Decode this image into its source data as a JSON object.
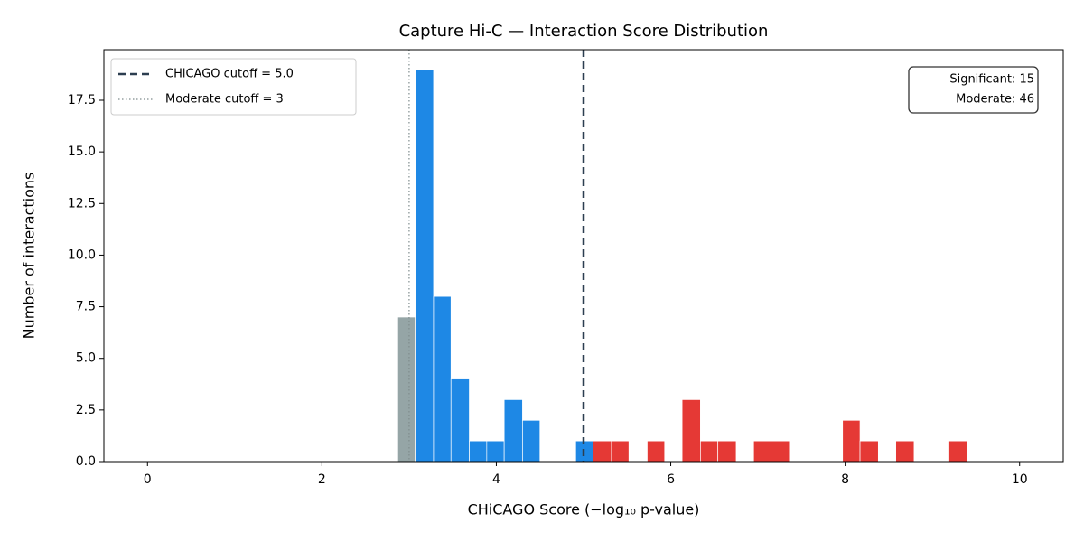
{
  "chart_data": {
    "type": "histogram",
    "title": "Capture Hi-C — Interaction Score Distribution",
    "x_label": "CHiCAGO Score (−log₁₀ p-value)",
    "y_label": "Number of interactions",
    "bins": [
      2.87,
      3.07,
      3.28,
      3.48,
      3.69,
      3.89,
      4.09,
      4.3,
      4.5,
      4.71,
      4.91,
      5.11,
      5.32,
      5.52,
      5.73,
      5.93,
      6.13,
      6.34,
      6.54,
      6.75,
      6.95,
      7.15,
      7.36,
      7.56,
      7.77,
      7.97,
      8.17,
      8.38,
      8.58,
      8.79,
      8.99,
      9.19,
      9.4
    ],
    "counts": [
      7,
      19,
      8,
      4,
      1,
      1,
      3,
      2,
      0,
      0,
      1,
      1,
      1,
      0,
      1,
      0,
      3,
      1,
      1,
      0,
      1,
      1,
      0,
      0,
      0,
      2,
      1,
      0,
      1,
      0,
      0,
      1
    ],
    "colors": [
      "#95a5a6",
      "#1e88e5",
      "#1e88e5",
      "#1e88e5",
      "#1e88e5",
      "#1e88e5",
      "#1e88e5",
      "#1e88e5",
      "#1e88e5",
      "#1e88e5",
      "#1e88e5",
      "#e53935",
      "#e53935",
      "#e53935",
      "#e53935",
      "#e53935",
      "#e53935",
      "#e53935",
      "#e53935",
      "#e53935",
      "#e53935",
      "#e53935",
      "#e53935",
      "#e53935",
      "#e53935",
      "#e53935",
      "#e53935",
      "#e53935",
      "#e53935",
      "#e53935",
      "#e53935",
      "#e53935"
    ],
    "xlim": [
      -0.5,
      10.5
    ],
    "ylim": [
      0,
      19.95
    ],
    "xticks": [
      0,
      2,
      4,
      6,
      8,
      10
    ],
    "yticks": [
      {
        "value": 0,
        "label": "0.0"
      },
      2.5,
      {
        "value": 5,
        "label": "5.0"
      },
      7.5,
      {
        "value": 10,
        "label": "10.0"
      },
      12.5,
      {
        "value": 15,
        "label": "15.0"
      },
      17.5
    ],
    "vlines": [
      {
        "name": "CHiCAGO cutoff = 5.0",
        "value": 5,
        "color": "#2c3e50",
        "style": "dashed"
      },
      {
        "name": "Moderate cutoff = 3",
        "value": 3,
        "color": "#7f8c8d",
        "style": "dotted"
      }
    ],
    "legend": "upper left",
    "annotation": [
      "Significant: 15",
      "Moderate: 46"
    ]
  }
}
